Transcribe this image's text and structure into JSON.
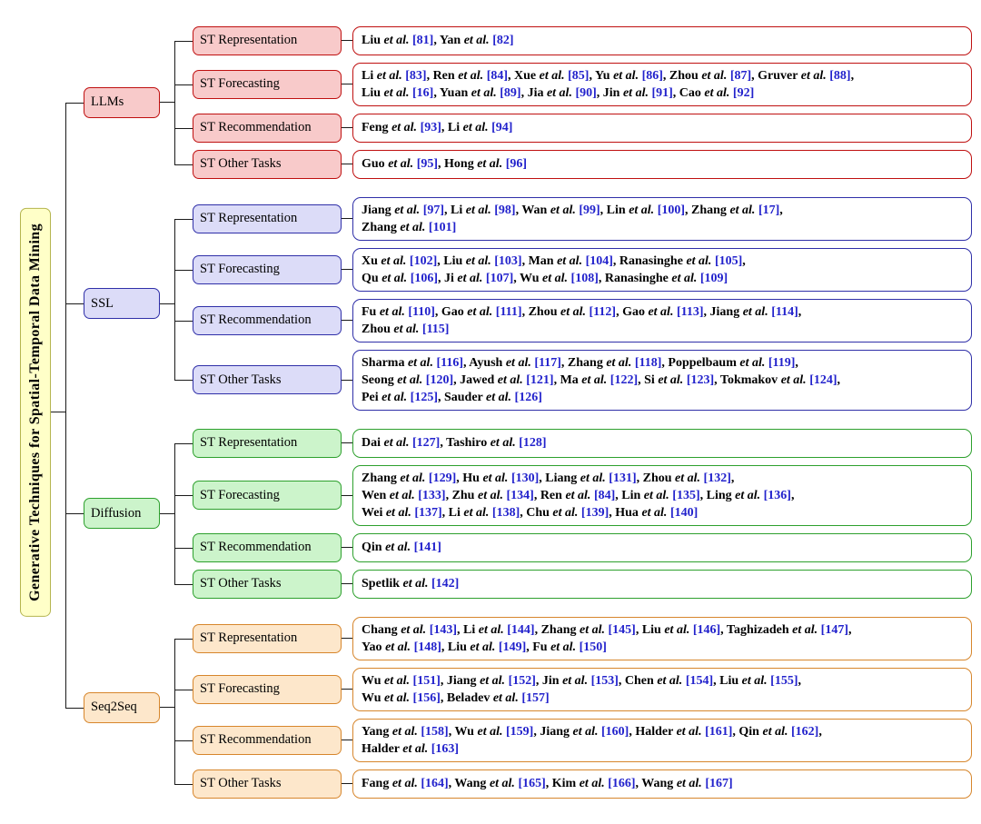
{
  "root": {
    "label": "Generative Techniques for Spatial-Temporal Data Mining",
    "fill": "#ffffc8",
    "border": "#b5b54f"
  },
  "colors": {
    "connector": "#1a1a1a",
    "ref_link": "#2222cc",
    "citation_box_fill": "#ffffff"
  },
  "citation_suffix": "et al.",
  "citation_separator": ",",
  "branches": [
    {
      "label": "LLMs",
      "fill": "#f8caca",
      "border": "#bf1010",
      "categories": [
        {
          "label": "ST Representation",
          "lines": [
            [
              {
                "n": "Liu",
                "r": "81"
              },
              {
                "n": "Yan",
                "r": "82"
              }
            ]
          ]
        },
        {
          "label": "ST Forecasting",
          "lines": [
            [
              {
                "n": "Li",
                "r": "83"
              },
              {
                "n": "Ren",
                "r": "84"
              },
              {
                "n": "Xue",
                "r": "85"
              },
              {
                "n": "Yu",
                "r": "86"
              },
              {
                "n": "Zhou",
                "r": "87"
              },
              {
                "n": "Gruver",
                "r": "88"
              }
            ],
            [
              {
                "n": "Liu",
                "r": "16"
              },
              {
                "n": "Yuan",
                "r": "89"
              },
              {
                "n": "Jia",
                "r": "90"
              },
              {
                "n": "Jin",
                "r": "91"
              },
              {
                "n": "Cao",
                "r": "92"
              }
            ]
          ]
        },
        {
          "label": "ST Recommendation",
          "lines": [
            [
              {
                "n": "Feng",
                "r": "93"
              },
              {
                "n": "Li",
                "r": "94"
              }
            ]
          ]
        },
        {
          "label": "ST Other Tasks",
          "lines": [
            [
              {
                "n": "Guo",
                "r": "95"
              },
              {
                "n": "Hong",
                "r": "96"
              }
            ]
          ]
        }
      ]
    },
    {
      "label": "SSL",
      "fill": "#dcdcf8",
      "border": "#2f2fa8",
      "categories": [
        {
          "label": "ST Representation",
          "lines": [
            [
              {
                "n": "Jiang",
                "r": "97"
              },
              {
                "n": "Li",
                "r": "98"
              },
              {
                "n": "Wan",
                "r": "99"
              },
              {
                "n": "Lin",
                "r": "100"
              },
              {
                "n": "Zhang",
                "r": "17"
              }
            ],
            [
              {
                "n": "Zhang",
                "r": "101"
              }
            ]
          ]
        },
        {
          "label": "ST Forecasting",
          "lines": [
            [
              {
                "n": "Xu",
                "r": "102"
              },
              {
                "n": "Liu",
                "r": "103"
              },
              {
                "n": "Man",
                "r": "104"
              },
              {
                "n": "Ranasinghe",
                "r": "105"
              }
            ],
            [
              {
                "n": "Qu",
                "r": "106"
              },
              {
                "n": "Ji",
                "r": "107"
              },
              {
                "n": "Wu",
                "r": "108"
              },
              {
                "n": "Ranasinghe",
                "r": "109"
              }
            ]
          ]
        },
        {
          "label": "ST Recommendation",
          "lines": [
            [
              {
                "n": "Fu",
                "r": "110"
              },
              {
                "n": "Gao",
                "r": "111"
              },
              {
                "n": "Zhou",
                "r": "112"
              },
              {
                "n": "Gao",
                "r": "113"
              },
              {
                "n": "Jiang",
                "r": "114"
              }
            ],
            [
              {
                "n": "Zhou",
                "r": "115"
              }
            ]
          ]
        },
        {
          "label": "ST Other Tasks",
          "lines": [
            [
              {
                "n": "Sharma",
                "r": "116"
              },
              {
                "n": "Ayush",
                "r": "117"
              },
              {
                "n": "Zhang",
                "r": "118"
              },
              {
                "n": "Poppelbaum",
                "r": "119"
              }
            ],
            [
              {
                "n": "Seong",
                "r": "120"
              },
              {
                "n": "Jawed",
                "r": "121"
              },
              {
                "n": "Ma",
                "r": "122"
              },
              {
                "n": "Si",
                "r": "123"
              },
              {
                "n": "Tokmakov",
                "r": "124"
              }
            ],
            [
              {
                "n": "Pei",
                "r": "125"
              },
              {
                "n": "Sauder",
                "r": "126"
              }
            ]
          ]
        }
      ]
    },
    {
      "label": "Diffusion",
      "fill": "#ccf4cb",
      "border": "#2da02d",
      "categories": [
        {
          "label": "ST Representation",
          "lines": [
            [
              {
                "n": "Dai",
                "r": "127"
              },
              {
                "n": "Tashiro",
                "r": "128"
              }
            ]
          ]
        },
        {
          "label": "ST Forecasting",
          "lines": [
            [
              {
                "n": "Zhang",
                "r": "129"
              },
              {
                "n": "Hu",
                "r": "130"
              },
              {
                "n": "Liang",
                "r": "131"
              },
              {
                "n": "Zhou",
                "r": "132"
              }
            ],
            [
              {
                "n": "Wen",
                "r": "133"
              },
              {
                "n": "Zhu",
                "r": "134"
              },
              {
                "n": "Ren",
                "r": "84"
              },
              {
                "n": "Lin",
                "r": "135"
              },
              {
                "n": "Ling",
                "r": "136"
              }
            ],
            [
              {
                "n": "Wei",
                "r": "137"
              },
              {
                "n": "Li",
                "r": "138"
              },
              {
                "n": "Chu",
                "r": "139"
              },
              {
                "n": "Hua",
                "r": "140"
              }
            ]
          ]
        },
        {
          "label": "ST Recommendation",
          "lines": [
            [
              {
                "n": "Qin",
                "r": "141"
              }
            ]
          ]
        },
        {
          "label": "ST Other Tasks",
          "lines": [
            [
              {
                "n": "Spetlik",
                "r": "142"
              }
            ]
          ]
        }
      ]
    },
    {
      "label": "Seq2Seq",
      "fill": "#fde7cb",
      "border": "#d7862c",
      "categories": [
        {
          "label": "ST Representation",
          "lines": [
            [
              {
                "n": "Chang",
                "r": "143"
              },
              {
                "n": "Li",
                "r": "144"
              },
              {
                "n": "Zhang",
                "r": "145"
              },
              {
                "n": "Liu",
                "r": "146"
              },
              {
                "n": "Taghizadeh",
                "r": "147"
              }
            ],
            [
              {
                "n": "Yao",
                "r": "148"
              },
              {
                "n": "Liu",
                "r": "149"
              },
              {
                "n": "Fu",
                "r": "150"
              }
            ]
          ]
        },
        {
          "label": "ST Forecasting",
          "lines": [
            [
              {
                "n": "Wu",
                "r": "151"
              },
              {
                "n": "Jiang",
                "r": "152"
              },
              {
                "n": "Jin",
                "r": "153"
              },
              {
                "n": "Chen",
                "r": "154"
              },
              {
                "n": "Liu",
                "r": "155"
              }
            ],
            [
              {
                "n": "Wu",
                "r": "156"
              },
              {
                "n": "Beladev",
                "r": "157"
              }
            ]
          ]
        },
        {
          "label": "ST Recommendation",
          "lines": [
            [
              {
                "n": "Yang",
                "r": "158"
              },
              {
                "n": "Wu",
                "r": "159"
              },
              {
                "n": "Jiang",
                "r": "160"
              },
              {
                "n": "Halder",
                "r": "161"
              },
              {
                "n": "Qin",
                "r": "162"
              }
            ],
            [
              {
                "n": "Halder",
                "r": "163"
              }
            ]
          ]
        },
        {
          "label": "ST Other Tasks",
          "lines": [
            [
              {
                "n": "Fang",
                "r": "164"
              },
              {
                "n": "Wang",
                "r": "165"
              },
              {
                "n": "Kim",
                "r": "166"
              },
              {
                "n": "Wang",
                "r": "167"
              }
            ]
          ]
        }
      ]
    }
  ]
}
